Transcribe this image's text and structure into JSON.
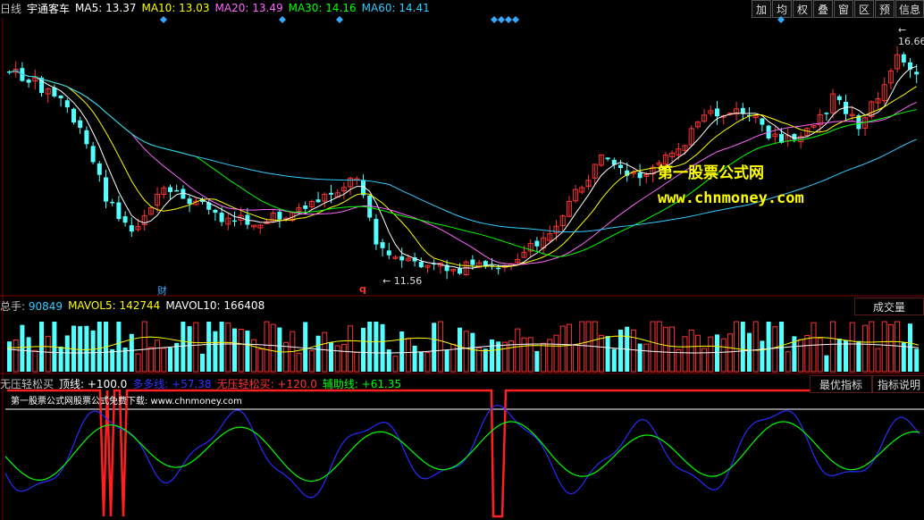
{
  "header": {
    "period": "日线",
    "stock_name": "宇通客车",
    "ma": [
      {
        "label": "MA5:",
        "value": "13.37",
        "color": "#ffffff"
      },
      {
        "label": "MA10:",
        "value": "13.03",
        "color": "#ffff00"
      },
      {
        "label": "MA20:",
        "value": "13.49",
        "color": "#ff66ff"
      },
      {
        "label": "MA30:",
        "value": "14.16",
        "color": "#00ff00"
      },
      {
        "label": "MA60:",
        "value": "14.41",
        "color": "#33ccff"
      }
    ]
  },
  "toolbar": [
    "加",
    "均",
    "权",
    "叠",
    "窗",
    "区",
    "预",
    "信息"
  ],
  "price_panel": {
    "high_label": "16.66",
    "low_label": "11.56",
    "marker_cai": "财",
    "marker_q": "q"
  },
  "volume_panel": {
    "label": "总手:",
    "value": "90849",
    "mavol5_label": "MAVOL5:",
    "mavol5_value": "142744",
    "mavol10_label": "MAVOL10:",
    "mavol10_value": "166408",
    "button": "成交量"
  },
  "indicator_panel": {
    "name": "无压轻松买",
    "top_line": "顶线: +100.0",
    "duoduo_line": "多多线: +57.38",
    "main_line": "无压轻松买: +120.0",
    "aux_line": "辅助线: +61.35",
    "best_button": "最优指标",
    "explain_button": "指标说明",
    "footer_text": "第一股票公式网股票公式免费下载: www.chnmoney.com"
  },
  "watermark": {
    "line1": "第一股票公式网",
    "line2": "www.chnmoney.com"
  },
  "colors": {
    "up": "#ff3232",
    "down": "#54ffff",
    "ma5": "#ffffff",
    "ma10": "#ffff00",
    "ma20": "#ff66ff",
    "ma30": "#00ff00",
    "ma60": "#33ccff",
    "divider": "#800000"
  }
}
